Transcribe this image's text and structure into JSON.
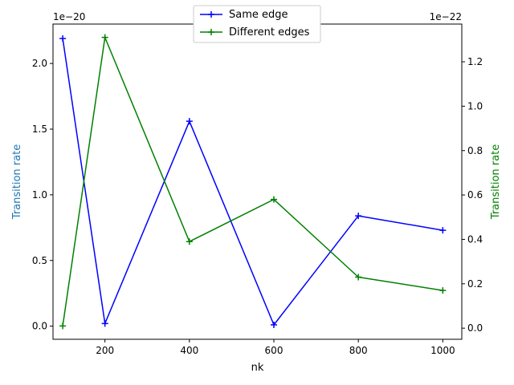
{
  "chart_data": {
    "type": "line",
    "xlabel": "nk",
    "x": [
      100,
      200,
      400,
      600,
      800,
      1000
    ],
    "xlim": [
      77,
      1045
    ],
    "xticks": [
      200,
      400,
      600,
      800,
      1000
    ],
    "xtick_labels": [
      "200",
      "400",
      "600",
      "800",
      "1000"
    ],
    "left_axis": {
      "ylabel": "Transition rate",
      "label_color": "#1f77b4",
      "offset_text": "1e−20",
      "scale": 1e-20,
      "ylim": [
        -0.1,
        2.3
      ],
      "ticks": [
        0.0,
        0.5,
        1.0,
        1.5,
        2.0
      ],
      "tick_labels": [
        "0.0",
        "0.5",
        "1.0",
        "1.5",
        "2.0"
      ]
    },
    "right_axis": {
      "ylabel": "Transition rate",
      "label_color": "#008000",
      "offset_text": "1e−22",
      "scale": 1e-22,
      "ylim": [
        -0.05,
        1.37
      ],
      "ticks": [
        0.0,
        0.2,
        0.4,
        0.6,
        0.8,
        1.0,
        1.2
      ],
      "tick_labels": [
        "0.0",
        "0.2",
        "0.4",
        "0.6",
        "0.8",
        "1.0",
        "1.2"
      ]
    },
    "series": [
      {
        "name": "Same edge",
        "axis": "left",
        "color": "#0000ff",
        "marker": "plus",
        "values": [
          2.19,
          0.02,
          1.56,
          0.01,
          0.84,
          0.73
        ]
      },
      {
        "name": "Different edges",
        "axis": "right",
        "color": "#008000",
        "marker": "plus",
        "values": [
          0.01,
          1.31,
          0.39,
          0.58,
          0.23,
          0.17
        ]
      }
    ],
    "legend_position": "top-center",
    "grid": false
  }
}
